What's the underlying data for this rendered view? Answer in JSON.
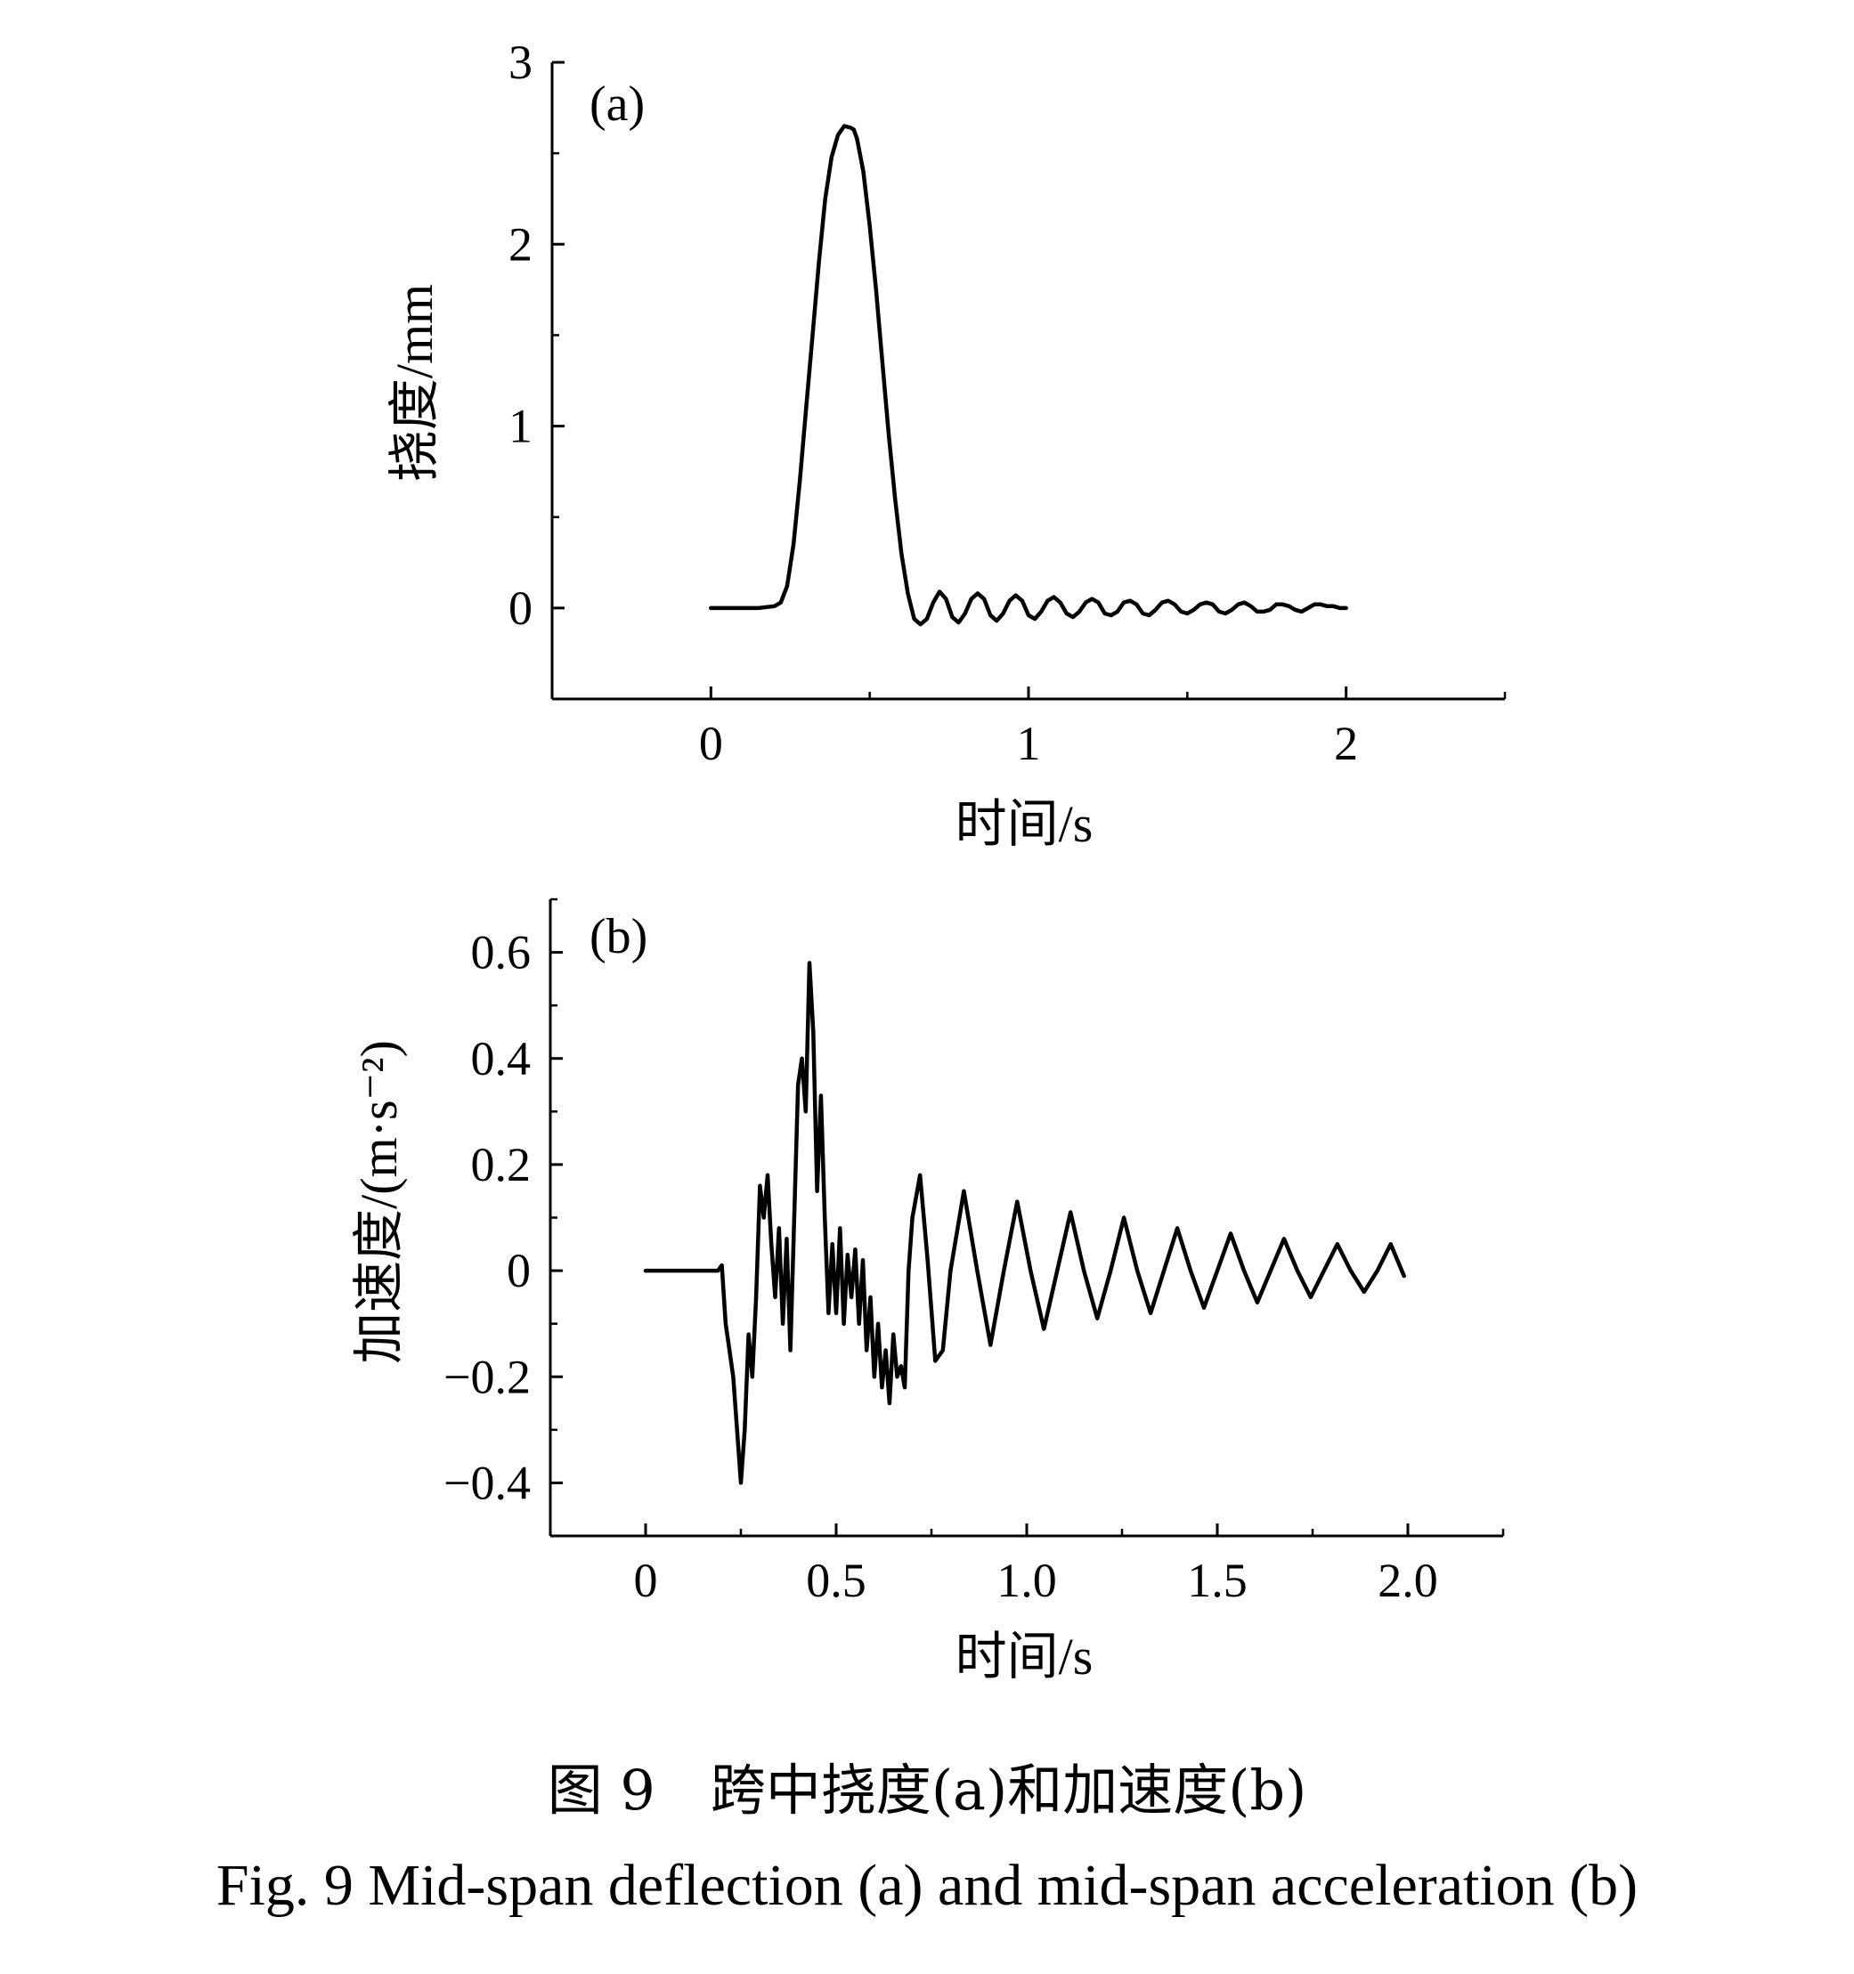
{
  "chart_data": [
    {
      "type": "line",
      "panel_label": "(a)",
      "xlabel": "时间/s",
      "ylabel": "挠度/mm",
      "xlim": [
        -0.5,
        2.5
      ],
      "ylim": [
        -0.5,
        3
      ],
      "xticks": [
        0,
        1,
        2
      ],
      "xtick_labels": [
        "0",
        "1",
        "2"
      ],
      "yticks": [
        0,
        1,
        2,
        3
      ],
      "ytick_labels": [
        "0",
        "1",
        "2",
        "3"
      ],
      "series": [
        {
          "x": [
            0,
            0.05,
            0.1,
            0.15,
            0.2,
            0.22,
            0.24,
            0.26,
            0.28,
            0.3,
            0.32,
            0.34,
            0.36,
            0.38,
            0.4,
            0.42,
            0.44,
            0.45,
            0.46,
            0.48,
            0.5,
            0.52,
            0.54,
            0.56,
            0.58,
            0.6,
            0.62,
            0.64,
            0.66,
            0.68,
            0.7,
            0.72,
            0.74,
            0.76,
            0.78,
            0.8,
            0.82,
            0.84,
            0.86,
            0.88,
            0.9,
            0.92,
            0.94,
            0.96,
            0.98,
            1.0,
            1.02,
            1.04,
            1.06,
            1.08,
            1.1,
            1.12,
            1.14,
            1.16,
            1.18,
            1.2,
            1.22,
            1.24,
            1.26,
            1.28,
            1.3,
            1.32,
            1.34,
            1.36,
            1.38,
            1.4,
            1.42,
            1.44,
            1.46,
            1.48,
            1.5,
            1.52,
            1.54,
            1.56,
            1.58,
            1.6,
            1.62,
            1.64,
            1.66,
            1.68,
            1.7,
            1.72,
            1.74,
            1.76,
            1.78,
            1.8,
            1.82,
            1.84,
            1.86,
            1.88,
            1.9,
            1.92,
            1.94,
            1.96,
            1.98,
            2.0
          ],
          "y": [
            0,
            0,
            0,
            0,
            0.01,
            0.03,
            0.12,
            0.35,
            0.7,
            1.1,
            1.5,
            1.9,
            2.25,
            2.48,
            2.6,
            2.65,
            2.64,
            2.63,
            2.58,
            2.4,
            2.1,
            1.75,
            1.35,
            0.95,
            0.6,
            0.3,
            0.08,
            -0.06,
            -0.09,
            -0.06,
            0.03,
            0.09,
            0.05,
            -0.05,
            -0.08,
            -0.03,
            0.05,
            0.08,
            0.05,
            -0.04,
            -0.07,
            -0.03,
            0.04,
            0.07,
            0.04,
            -0.04,
            -0.06,
            -0.02,
            0.04,
            0.06,
            0.03,
            -0.03,
            -0.05,
            -0.02,
            0.03,
            0.05,
            0.03,
            -0.03,
            -0.04,
            -0.02,
            0.03,
            0.04,
            0.02,
            -0.03,
            -0.04,
            -0.01,
            0.03,
            0.04,
            0.02,
            -0.02,
            -0.03,
            -0.01,
            0.02,
            0.03,
            0.02,
            -0.02,
            -0.03,
            -0.01,
            0.02,
            0.03,
            0.01,
            -0.02,
            -0.02,
            -0.01,
            0.02,
            0.02,
            0.01,
            -0.01,
            -0.02,
            0,
            0.02,
            0.02,
            0.01,
            0.01,
            0,
            0
          ]
        }
      ]
    },
    {
      "type": "line",
      "panel_label": "(b)",
      "xlabel": "时间/s",
      "ylabel": "加速度/(m·s⁻²)",
      "xlim": [
        -0.25,
        2.25
      ],
      "ylim": [
        -0.5,
        0.7
      ],
      "xticks": [
        0,
        0.5,
        1.0,
        1.5,
        2.0
      ],
      "xtick_labels": [
        "0",
        "0.5",
        "1.0",
        "1.5",
        "2.0"
      ],
      "yticks": [
        -0.4,
        -0.2,
        0,
        0.2,
        0.4,
        0.6
      ],
      "ytick_labels": [
        "−0.4",
        "−0.2",
        "0",
        "0.2",
        "0.4",
        "0.6"
      ],
      "series": [
        {
          "x": [
            0,
            0.1,
            0.19,
            0.2,
            0.21,
            0.22,
            0.23,
            0.24,
            0.25,
            0.26,
            0.27,
            0.28,
            0.29,
            0.3,
            0.31,
            0.32,
            0.33,
            0.34,
            0.35,
            0.36,
            0.37,
            0.38,
            0.39,
            0.4,
            0.41,
            0.42,
            0.43,
            0.44,
            0.45,
            0.46,
            0.47,
            0.48,
            0.49,
            0.5,
            0.51,
            0.52,
            0.53,
            0.54,
            0.55,
            0.56,
            0.57,
            0.58,
            0.59,
            0.6,
            0.61,
            0.62,
            0.63,
            0.64,
            0.65,
            0.66,
            0.67,
            0.68,
            0.69,
            0.7,
            0.72,
            0.74,
            0.76,
            0.78,
            0.8,
            0.835,
            0.87,
            0.905,
            0.94,
            0.975,
            1.01,
            1.045,
            1.08,
            1.115,
            1.15,
            1.185,
            1.22,
            1.255,
            1.29,
            1.325,
            1.36,
            1.395,
            1.43,
            1.465,
            1.5,
            1.535,
            1.57,
            1.605,
            1.64,
            1.675,
            1.71,
            1.745,
            1.78,
            1.815,
            1.85,
            1.885,
            1.92,
            1.955,
            1.99
          ],
          "y": [
            0,
            0,
            0,
            0.01,
            -0.1,
            -0.15,
            -0.2,
            -0.3,
            -0.4,
            -0.3,
            -0.12,
            -0.2,
            -0.05,
            0.16,
            0.1,
            0.18,
            0.05,
            -0.05,
            0.08,
            -0.1,
            0.06,
            -0.15,
            0.1,
            0.35,
            0.4,
            0.3,
            0.58,
            0.45,
            0.15,
            0.33,
            0.1,
            -0.08,
            0.05,
            -0.08,
            0.08,
            -0.1,
            0.03,
            -0.05,
            0.04,
            -0.1,
            0.02,
            -0.15,
            -0.05,
            -0.2,
            -0.1,
            -0.22,
            -0.15,
            -0.25,
            -0.12,
            -0.2,
            -0.18,
            -0.22,
            0.0,
            0.1,
            0.18,
            0.02,
            -0.17,
            -0.15,
            0.0,
            0.15,
            0.0,
            -0.14,
            0.0,
            0.13,
            0.0,
            -0.11,
            0.0,
            0.11,
            0.0,
            -0.09,
            0.0,
            0.1,
            0.0,
            -0.08,
            0.0,
            0.08,
            0.0,
            -0.07,
            0.0,
            0.07,
            0.0,
            -0.06,
            0.0,
            0.06,
            0.0,
            -0.05,
            0.0,
            0.05,
            0.0,
            -0.04,
            0.0,
            0.05,
            -0.01
          ]
        }
      ]
    }
  ],
  "caption": {
    "cn": "图 9　跨中挠度(a)和加速度(b)",
    "en": "Fig. 9  Mid-span deflection (a) and mid-span acceleration (b)"
  }
}
